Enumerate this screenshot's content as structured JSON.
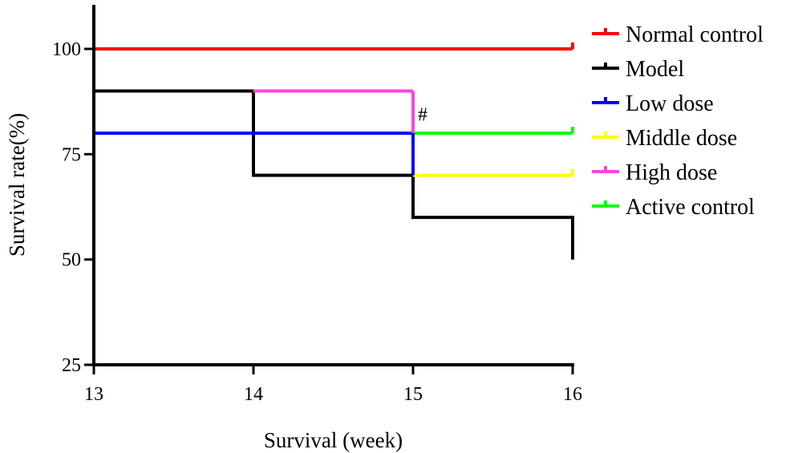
{
  "chart_data": {
    "type": "line",
    "subtype": "step",
    "title": "",
    "xlabel": "Survival (week)",
    "ylabel": "Survival rate(%)",
    "xlim": [
      13,
      16
    ],
    "ylim": [
      25,
      110
    ],
    "xticks": [
      13,
      14,
      15,
      16
    ],
    "yticks": [
      25,
      50,
      75,
      100
    ],
    "grid": false,
    "legend_position": "right",
    "annotations": [
      {
        "text": "#",
        "x": 15.03,
        "y": 83
      }
    ],
    "series": [
      {
        "name": "Normal control",
        "color": "#ff0000",
        "x": [
          13,
          16
        ],
        "y": [
          100,
          100
        ]
      },
      {
        "name": "Model",
        "color": "#000000",
        "x": [
          13,
          14,
          15,
          16
        ],
        "y": [
          90,
          70,
          60,
          50
        ]
      },
      {
        "name": "Low dose",
        "color": "#0000ff",
        "x": [
          13,
          15
        ],
        "y": [
          80,
          80
        ]
      },
      {
        "name": "Middle dose",
        "color": "#ffff00",
        "x": [
          15,
          16
        ],
        "y": [
          70,
          70
        ]
      },
      {
        "name": "High dose",
        "color": "#ff44dd",
        "x": [
          14,
          15
        ],
        "y": [
          90,
          90
        ]
      },
      {
        "name": "Active control",
        "color": "#00ff00",
        "x": [
          15,
          16
        ],
        "y": [
          80,
          80
        ]
      }
    ]
  }
}
